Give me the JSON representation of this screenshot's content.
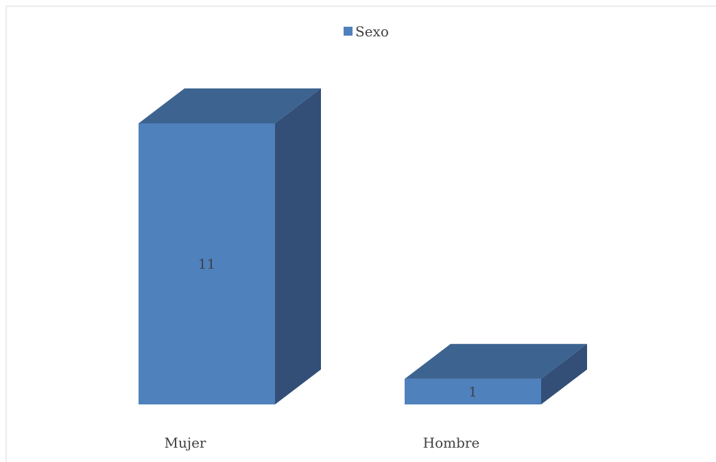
{
  "chart_data": {
    "type": "bar",
    "style": "3d-column",
    "categories": [
      "Mujer",
      "Hombre"
    ],
    "series": [
      {
        "name": "Sexo",
        "values": [
          11,
          1
        ],
        "color": "#4F81BD"
      }
    ],
    "data_labels": [
      "11",
      "1"
    ],
    "legend": {
      "position": "top",
      "entries": [
        "Sexo"
      ]
    },
    "ylim": [
      0,
      12
    ],
    "grid": false,
    "colors": {
      "front": "#4F81BD",
      "top": "#3D6490",
      "side": "#334F77",
      "border": "#D9D9D9",
      "text": "#404040"
    }
  }
}
